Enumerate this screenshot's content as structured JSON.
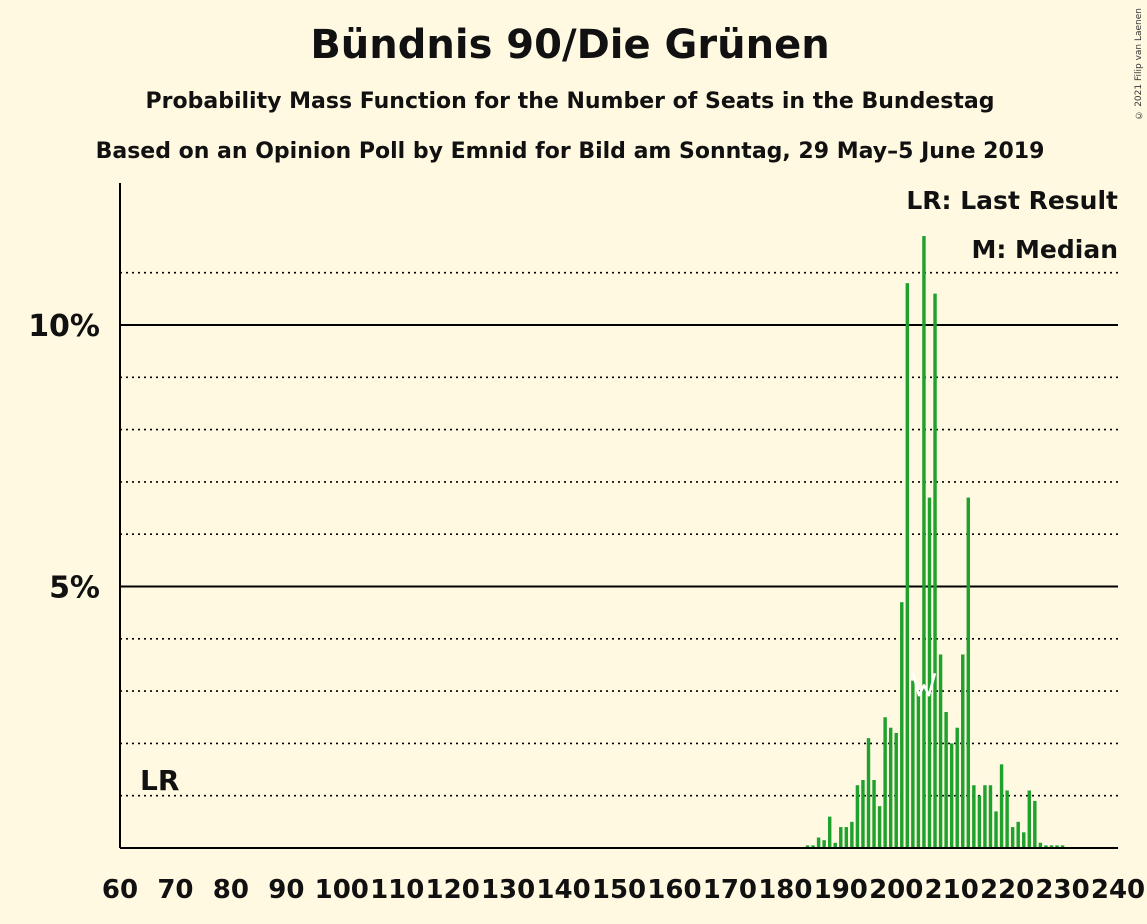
{
  "title": "Bündnis 90/Die Grünen",
  "subtitle": "Probability Mass Function for the Number of Seats in the Bundestag",
  "subtitle2": "Based on an Opinion Poll by Emnid for Bild am Sonntag, 29 May–5 June 2019",
  "copyright": "© 2021 Filip van Laenen",
  "legend": {
    "lr": "LR: Last Result",
    "median": "M: Median"
  },
  "lr_label": "LR",
  "colors": {
    "bar": "#1FA12E",
    "background": "#FFF9E1",
    "axis": "#000000"
  },
  "chart_data": {
    "type": "bar",
    "xlim": [
      60,
      240
    ],
    "ylim": [
      0,
      12
    ],
    "x_ticks": [
      "60",
      "70",
      "80",
      "90",
      "100",
      "110",
      "120",
      "130",
      "140",
      "150",
      "160",
      "170",
      "180",
      "190",
      "200",
      "210",
      "220",
      "230",
      "240"
    ],
    "y_ticks": [
      {
        "value": 5,
        "label": "5%"
      },
      {
        "value": 10,
        "label": "10%"
      }
    ],
    "minor_gridlines": [
      1,
      2,
      3,
      4,
      6,
      7,
      8,
      9,
      11
    ],
    "last_result": 63,
    "median": 205,
    "x": [
      184,
      185,
      186,
      187,
      188,
      189,
      190,
      191,
      192,
      193,
      194,
      195,
      196,
      197,
      198,
      199,
      200,
      201,
      202,
      203,
      204,
      205,
      206,
      207,
      208,
      209,
      210,
      211,
      212,
      213,
      214,
      215,
      216,
      217,
      218,
      219,
      220,
      221,
      222,
      223,
      224,
      225,
      226,
      227,
      228,
      229,
      230
    ],
    "values": [
      0.05,
      0.05,
      0.2,
      0.15,
      0.6,
      0.1,
      0.4,
      0.4,
      0.5,
      1.2,
      1.3,
      2.1,
      1.3,
      0.8,
      2.5,
      2.3,
      2.2,
      4.7,
      10.8,
      3.2,
      3.0,
      11.7,
      6.7,
      10.6,
      3.7,
      2.6,
      2.0,
      2.3,
      3.7,
      6.7,
      1.2,
      1.0,
      1.2,
      1.2,
      0.7,
      1.6,
      1.1,
      0.4,
      0.5,
      0.3,
      1.1,
      0.9,
      0.1,
      0.05,
      0.05,
      0.05,
      0.05
    ]
  }
}
